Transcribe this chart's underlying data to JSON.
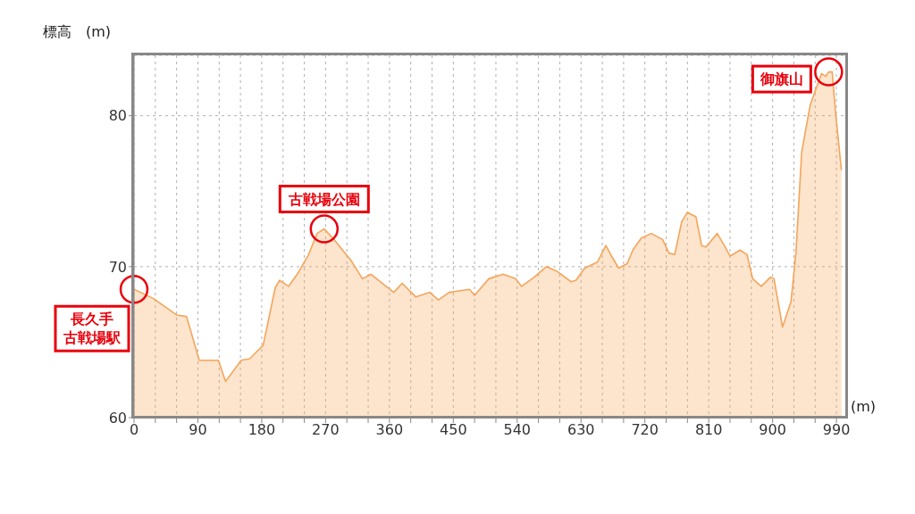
{
  "chart_data": {
    "type": "area",
    "xlabel": "(m)",
    "ylabel": "標高　(m)",
    "x": [
      0,
      27,
      60,
      74,
      92,
      119,
      129,
      151,
      163,
      182,
      199,
      205,
      218,
      230,
      246,
      258,
      268,
      282,
      306,
      322,
      334,
      366,
      378,
      397,
      417,
      429,
      444,
      473,
      480,
      500,
      520,
      538,
      546,
      564,
      581,
      596,
      616,
      623,
      635,
      653,
      665,
      673,
      683,
      695,
      703,
      715,
      729,
      745,
      754,
      762,
      772,
      780,
      792,
      800,
      806,
      822,
      832,
      840,
      854,
      864,
      872,
      884,
      897,
      902,
      914,
      926,
      933,
      941,
      953,
      969,
      975,
      979,
      984,
      989,
      997
    ],
    "series": [
      {
        "color": "#f4a55a",
        "values": [
          68.5,
          67.9,
          66.8,
          66.7,
          63.8,
          63.8,
          62.4,
          63.8,
          63.9,
          64.8,
          68.6,
          69.1,
          68.7,
          69.5,
          70.8,
          72.2,
          72.5,
          71.8,
          70.4,
          69.2,
          69.5,
          68.3,
          68.9,
          68.0,
          68.3,
          67.8,
          68.3,
          68.5,
          68.1,
          69.2,
          69.5,
          69.2,
          68.7,
          69.3,
          70.0,
          69.7,
          69.0,
          69.1,
          69.9,
          70.3,
          71.4,
          70.7,
          69.9,
          70.2,
          71.1,
          71.9,
          72.2,
          71.8,
          70.9,
          70.8,
          73.0,
          73.6,
          73.3,
          71.4,
          71.3,
          72.2,
          71.4,
          70.7,
          71.1,
          70.8,
          69.2,
          68.7,
          69.3,
          69.2,
          66.0,
          67.7,
          71.0,
          77.6,
          80.7,
          82.8,
          82.6,
          82.9,
          82.9,
          80.1,
          76.4
        ]
      }
    ],
    "xlim": [
      0,
      1005
    ],
    "ylim": [
      60,
      84
    ],
    "xticks": [
      0,
      {
        "value": 30,
        "label": null
      },
      {
        "value": 60,
        "label": null
      },
      90,
      {
        "value": 120,
        "label": null
      },
      {
        "value": 150,
        "label": null
      },
      180,
      {
        "value": 210,
        "label": null
      },
      {
        "value": 240,
        "label": null
      },
      270,
      {
        "value": 300,
        "label": null
      },
      {
        "value": 330,
        "label": null
      },
      360,
      {
        "value": 390,
        "label": null
      },
      {
        "value": 420,
        "label": null
      },
      450,
      {
        "value": 480,
        "label": null
      },
      {
        "value": 510,
        "label": null
      },
      540,
      {
        "value": 570,
        "label": null
      },
      {
        "value": 600,
        "label": null
      },
      630,
      {
        "value": 660,
        "label": null
      },
      {
        "value": 690,
        "label": null
      },
      720,
      {
        "value": 750,
        "label": null
      },
      {
        "value": 780,
        "label": null
      },
      810,
      {
        "value": 840,
        "label": null
      },
      {
        "value": 870,
        "label": null
      },
      900,
      {
        "value": 930,
        "label": null
      },
      {
        "value": 960,
        "label": null
      },
      990
    ],
    "yticks": [
      60,
      70,
      80
    ],
    "grid": true,
    "legend": false,
    "annotations": [
      {
        "text": "長久手古戦場駅",
        "x": 0,
        "y": 68.5
      },
      {
        "text": "古戦場公園",
        "x": 268,
        "y": 72.5
      },
      {
        "text": "御旗山",
        "x": 979,
        "y": 82.9
      }
    ]
  }
}
